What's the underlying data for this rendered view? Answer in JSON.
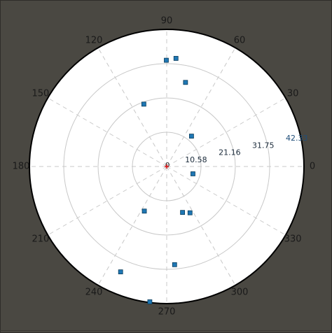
{
  "chart_data": {
    "type": "scatter",
    "coordinate_system": "polar",
    "title": "",
    "angle_ticks": [
      "0",
      "30",
      "60",
      "90",
      "120",
      "150",
      "180",
      "210",
      "240",
      "270",
      "300",
      "330"
    ],
    "radius_ticks": [
      "10.58",
      "21.16",
      "31.75",
      "42.33"
    ],
    "radius_tick_values": [
      10.58,
      21.16,
      31.75,
      42.33
    ],
    "center_label": "0",
    "rlim": [
      0,
      42.33
    ],
    "grid": true,
    "series": [
      {
        "marker": "square",
        "color": "#1f77b4",
        "points": [
          {
            "theta": 90.2,
            "r": 32.8
          },
          {
            "theta": 85.1,
            "r": 33.5
          },
          {
            "theta": 77.4,
            "r": 26.6
          },
          {
            "theta": 110.1,
            "r": 20.5
          },
          {
            "theta": 50.8,
            "r": 12.1
          },
          {
            "theta": 344.4,
            "r": 8.4
          },
          {
            "theta": 243.4,
            "r": 15.4
          },
          {
            "theta": 296.7,
            "r": 16.0
          },
          {
            "theta": 274.6,
            "r": 30.4
          },
          {
            "theta": 289.0,
            "r": 15.0
          },
          {
            "theta": 262.9,
            "r": 42.1
          },
          {
            "theta": 246.4,
            "r": 35.5
          }
        ]
      }
    ],
    "origin_marker_color": "#e31a1c"
  },
  "colors": {
    "background": "#4a4842",
    "plot_area": "#ffffff",
    "outer_ring": "#000000",
    "grid": "#c8c8c8",
    "radius_label": "#1f4e79",
    "marker": "#1f77b4"
  }
}
